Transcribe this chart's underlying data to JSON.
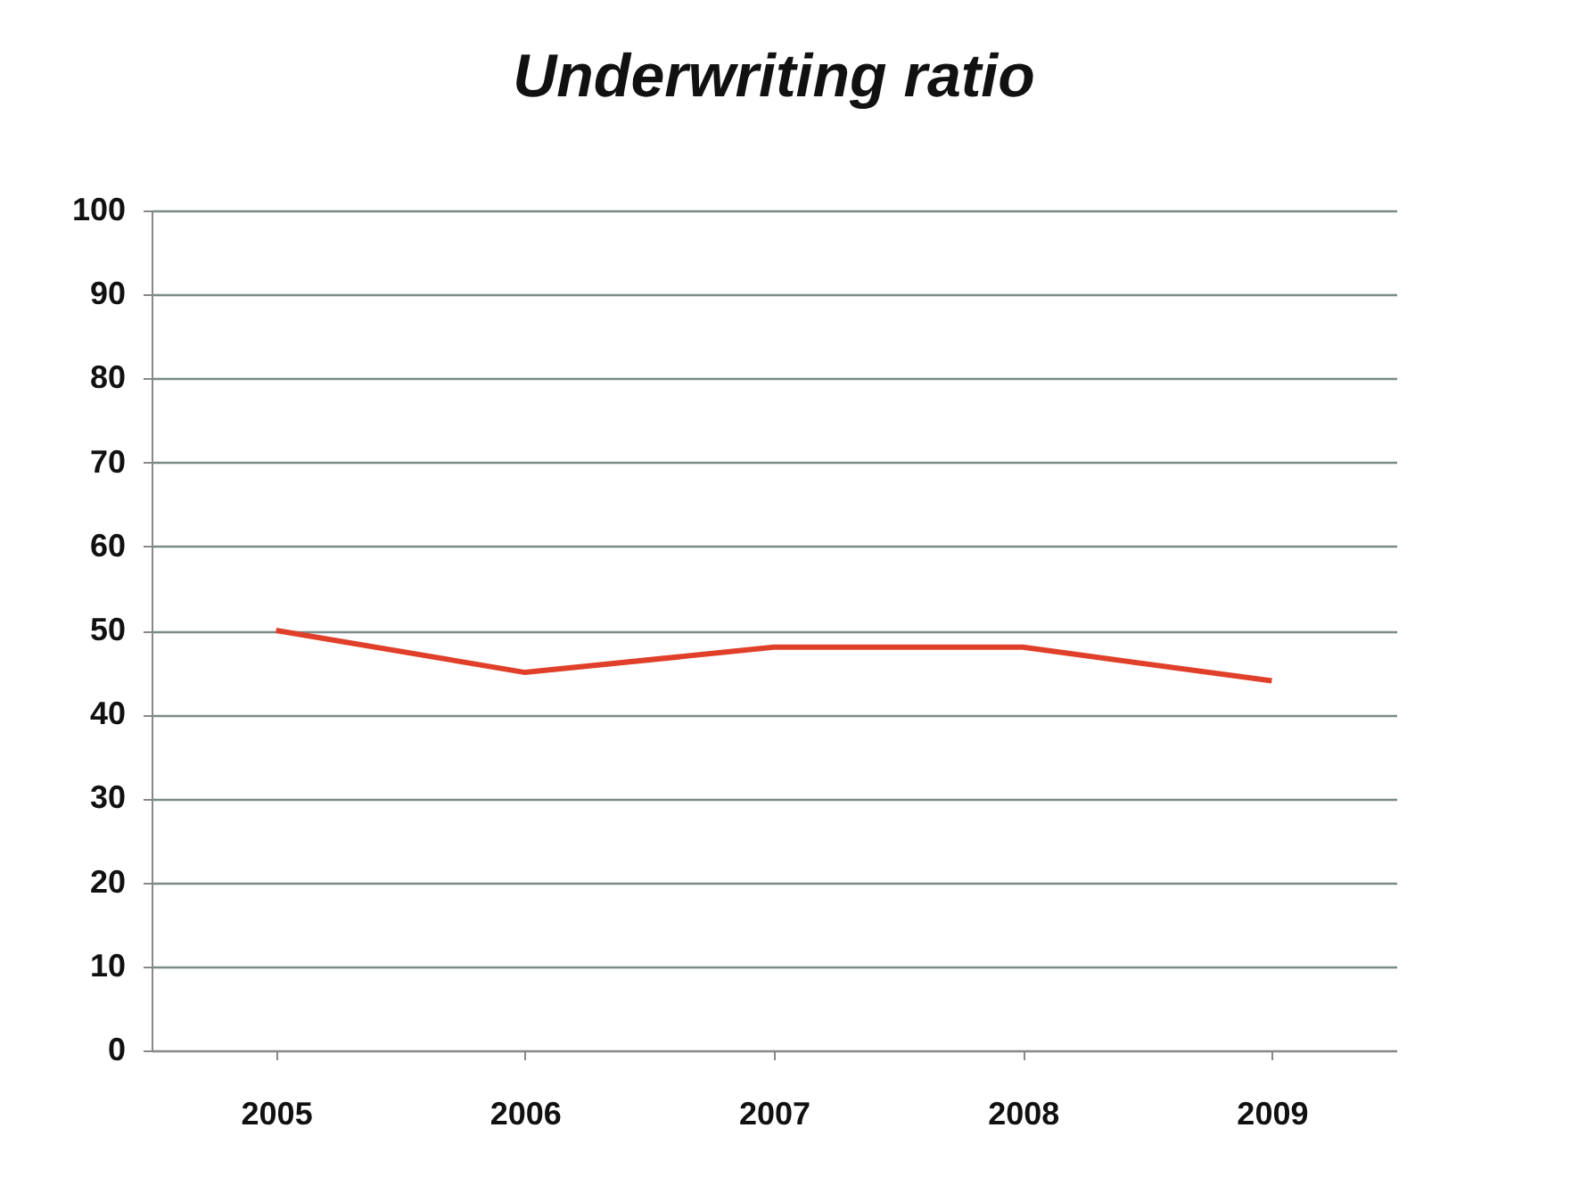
{
  "chart_data": {
    "type": "line",
    "title": "Underwriting ratio",
    "categories": [
      "2005",
      "2006",
      "2007",
      "2008",
      "2009"
    ],
    "series": [
      {
        "color": "#e0402a",
        "values": [
          50,
          45,
          48,
          48,
          44
        ]
      }
    ],
    "ylim": [
      0,
      100
    ],
    "yticks": [
      0,
      10,
      20,
      30,
      40,
      50,
      60,
      70,
      80,
      90,
      100
    ],
    "grid": "y"
  }
}
